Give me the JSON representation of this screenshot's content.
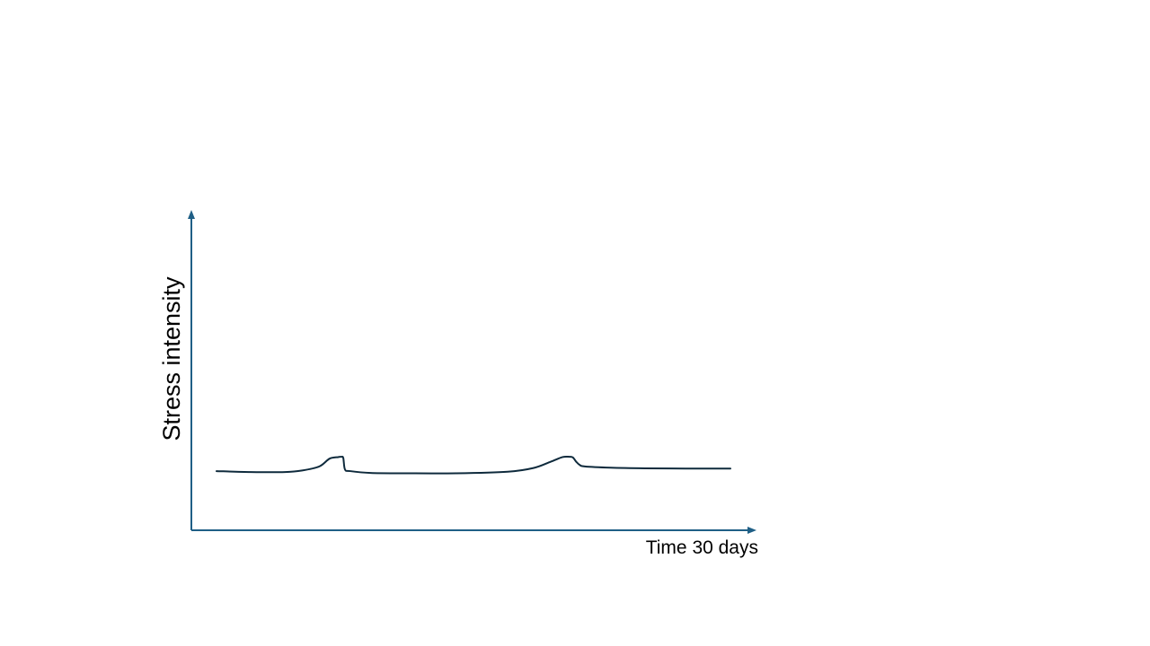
{
  "chart_data": {
    "type": "line",
    "title": "",
    "xlabel": "Time 30 days",
    "ylabel": "Stress intensity",
    "xlim": [
      0,
      30
    ],
    "ylim": [
      0,
      10
    ],
    "grid": false,
    "legend": "none",
    "ticks": "none",
    "series": [
      {
        "color": "#0e2a3c",
        "x": [
          0,
          2,
          4,
          5,
          6,
          6.6,
          7.1,
          7.3,
          7.4,
          7.5,
          7.8,
          9,
          11,
          14,
          17,
          18.5,
          19.5,
          20.2,
          20.6,
          20.8,
          21.0,
          21.2,
          21.5,
          23,
          25,
          28,
          30
        ],
        "y": [
          1.9,
          1.87,
          1.87,
          1.92,
          2.05,
          2.3,
          2.35,
          2.36,
          2.32,
          1.95,
          1.9,
          1.84,
          1.83,
          1.83,
          1.88,
          2.0,
          2.2,
          2.35,
          2.36,
          2.34,
          2.2,
          2.1,
          2.05,
          2.01,
          1.99,
          1.98,
          1.98
        ]
      }
    ]
  }
}
